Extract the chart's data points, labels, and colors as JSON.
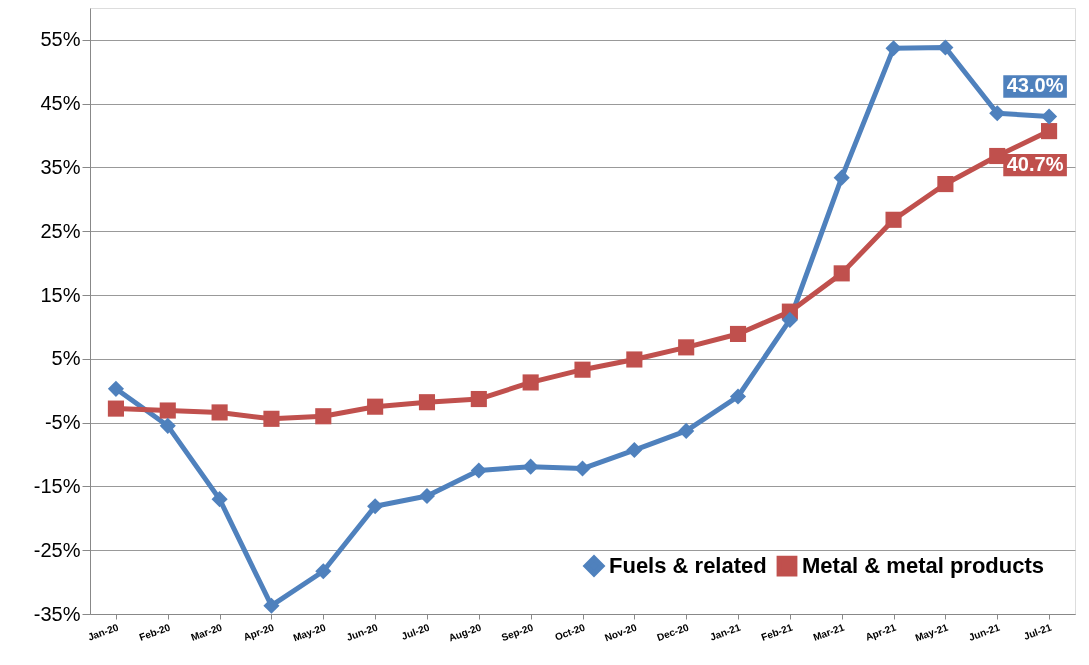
{
  "chart_data": {
    "type": "line",
    "categories": [
      "Jan-20",
      "Feb-20",
      "Mar-20",
      "Apr-20",
      "May-20",
      "Jun-20",
      "Jul-20",
      "Aug-20",
      "Sep-20",
      "Oct-20",
      "Nov-20",
      "Dec-20",
      "Jan-21",
      "Feb-21",
      "Mar-21",
      "Apr-21",
      "May-21",
      "Jun-21",
      "Jul-21"
    ],
    "series": [
      {
        "name": "Fuels & related",
        "color": "#4f81bd",
        "marker": "diamond",
        "values": [
          0.3,
          -5.5,
          -17,
          -33.7,
          -28.3,
          -18.1,
          -16.5,
          -12.5,
          -11.9,
          -12.2,
          -9.3,
          -6.3,
          -0.9,
          11.1,
          33.4,
          53.7,
          53.8,
          43.5,
          43.0
        ],
        "value_labels": [
          null,
          null,
          null,
          null,
          null,
          null,
          null,
          null,
          null,
          null,
          null,
          null,
          null,
          null,
          null,
          null,
          null,
          null,
          "43.0%"
        ]
      },
      {
        "name": "Metal & metal products",
        "color": "#c0504d",
        "marker": "square",
        "values": [
          -2.8,
          -3.1,
          -3.4,
          -4.4,
          -4.0,
          -2.5,
          -1.8,
          -1.3,
          1.3,
          3.3,
          4.9,
          6.8,
          8.9,
          12.4,
          18.4,
          26.8,
          32.4,
          36.8,
          40.7
        ],
        "value_labels": [
          null,
          null,
          null,
          null,
          null,
          null,
          null,
          null,
          null,
          null,
          null,
          null,
          null,
          null,
          null,
          null,
          null,
          null,
          "40.7%"
        ]
      }
    ],
    "ylim": [
      -35,
      60
    ],
    "yticks": [
      {
        "value": -35,
        "label": "-35%"
      },
      {
        "value": -25,
        "label": "-25%"
      },
      {
        "value": -15,
        "label": "-15%"
      },
      {
        "value": -5,
        "label": "-5%"
      },
      {
        "value": 5,
        "label": "5%"
      },
      {
        "value": 15,
        "label": "15%"
      },
      {
        "value": 25,
        "label": "25%"
      },
      {
        "value": 35,
        "label": "35%"
      },
      {
        "value": 45,
        "label": "45%"
      },
      {
        "value": 55,
        "label": "55%"
      }
    ],
    "grid": "y",
    "legend": "bottom right",
    "line_style": "solid"
  }
}
